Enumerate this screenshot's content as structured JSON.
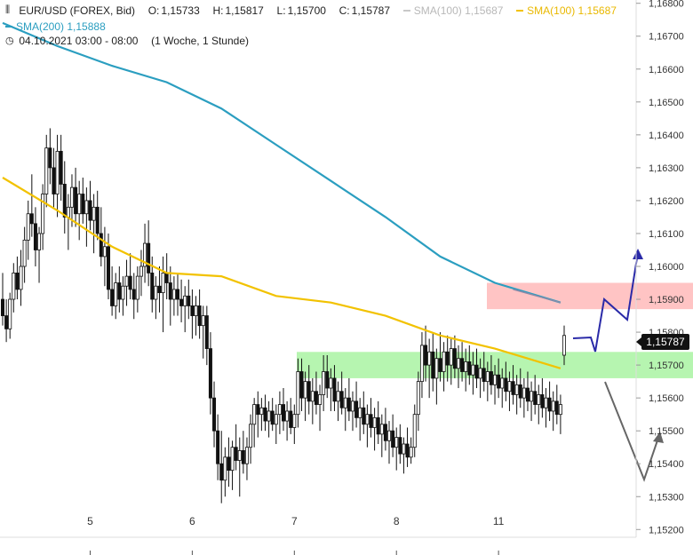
{
  "header": {
    "symbol": "EUR/USD (FOREX, Bid)",
    "open_label": "O:",
    "open": "1,15733",
    "high_label": "H:",
    "high": "1,15817",
    "low_label": "L:",
    "low": "1,15700",
    "close_label": "C:",
    "close": "1,15787",
    "sma100_grey_label": "SMA(100)",
    "sma100_grey_value": "1,15687",
    "sma100_label": "SMA(100)",
    "sma100_value": "1,15687",
    "sma200_label": "SMA(200)",
    "sma200_value": "1,15888",
    "date_range": "04.10.2021 03:00 - 08:00",
    "interval": "(1 Woche, 1 Stunde)"
  },
  "last_price_tag": "1,15787",
  "icons": {
    "chart_type": "candlestick-icon",
    "clock": "clock-icon"
  },
  "colors": {
    "sma100": "#f2c200",
    "sma200": "#2b9ec0",
    "candle": "#111111",
    "resistance_zone": "#ffc4c4",
    "support_zone": "#b6f5b0",
    "bull_arrow": "#2a2aa8",
    "bear_arrow": "#666666"
  },
  "chart_data": {
    "type": "candlestick",
    "title": "EUR/USD (FOREX, Bid)",
    "x_ticks": [
      "5",
      "6",
      "7",
      "8",
      "11"
    ],
    "y_ticks": [
      "1,15200",
      "1,15300",
      "1,15400",
      "1,15500",
      "1,15600",
      "1,15700",
      "1,15800",
      "1,15900",
      "1,16000",
      "1,16100",
      "1,16200",
      "1,16300",
      "1,16400",
      "1,16500",
      "1,16600",
      "1,16700",
      "1,16800"
    ],
    "ylim": [
      1.1519,
      1.1681
    ],
    "n_bars": 155,
    "candles_ohlc": [
      [
        1.159,
        1.1598,
        1.1582,
        1.1585
      ],
      [
        1.1585,
        1.159,
        1.1577,
        1.1581
      ],
      [
        1.1581,
        1.1592,
        1.1578,
        1.159
      ],
      [
        1.159,
        1.1601,
        1.1586,
        1.1598
      ],
      [
        1.1598,
        1.1603,
        1.159,
        1.1593
      ],
      [
        1.1593,
        1.1605,
        1.1588,
        1.16
      ],
      [
        1.16,
        1.1612,
        1.1595,
        1.1608
      ],
      [
        1.1608,
        1.162,
        1.1602,
        1.1616
      ],
      [
        1.1616,
        1.1628,
        1.1609,
        1.1613
      ],
      [
        1.1613,
        1.1618,
        1.16,
        1.1605
      ],
      [
        1.1605,
        1.1612,
        1.1595,
        1.161
      ],
      [
        1.161,
        1.1625,
        1.1605,
        1.1622
      ],
      [
        1.1622,
        1.164,
        1.1618,
        1.1636
      ],
      [
        1.1636,
        1.1642,
        1.1625,
        1.163
      ],
      [
        1.163,
        1.1636,
        1.1618,
        1.1622
      ],
      [
        1.1622,
        1.164,
        1.1615,
        1.1635
      ],
      [
        1.1635,
        1.164,
        1.162,
        1.1625
      ],
      [
        1.1625,
        1.1632,
        1.161,
        1.1615
      ],
      [
        1.1615,
        1.1622,
        1.1605,
        1.1618
      ],
      [
        1.1618,
        1.1628,
        1.1612,
        1.1624
      ],
      [
        1.1624,
        1.163,
        1.1612,
        1.1616
      ],
      [
        1.1616,
        1.1626,
        1.1608,
        1.1622
      ],
      [
        1.1622,
        1.1627,
        1.1613,
        1.1616
      ],
      [
        1.1616,
        1.1624,
        1.1606,
        1.162
      ],
      [
        1.162,
        1.1626,
        1.1611,
        1.1614
      ],
      [
        1.1614,
        1.1622,
        1.1604,
        1.1618
      ],
      [
        1.1618,
        1.1623,
        1.1608,
        1.161
      ],
      [
        1.161,
        1.1618,
        1.16,
        1.1603
      ],
      [
        1.1603,
        1.1612,
        1.1594,
        1.1606
      ],
      [
        1.1606,
        1.161,
        1.159,
        1.1593
      ],
      [
        1.1593,
        1.16,
        1.1585,
        1.1588
      ],
      [
        1.1588,
        1.1598,
        1.1584,
        1.1595
      ],
      [
        1.1595,
        1.16,
        1.1586,
        1.159
      ],
      [
        1.159,
        1.1597,
        1.1585,
        1.1594
      ],
      [
        1.1594,
        1.1602,
        1.1588,
        1.1597
      ],
      [
        1.1597,
        1.1604,
        1.159,
        1.1593
      ],
      [
        1.1593,
        1.1598,
        1.1584,
        1.159
      ],
      [
        1.159,
        1.16,
        1.1586,
        1.1597
      ],
      [
        1.1597,
        1.1605,
        1.1591,
        1.16
      ],
      [
        1.16,
        1.1613,
        1.1595,
        1.1607
      ],
      [
        1.1607,
        1.1614,
        1.1594,
        1.1598
      ],
      [
        1.1598,
        1.1603,
        1.1586,
        1.159
      ],
      [
        1.159,
        1.1597,
        1.1584,
        1.1594
      ],
      [
        1.1594,
        1.16,
        1.1586,
        1.1592
      ],
      [
        1.1592,
        1.1603,
        1.158,
        1.1598
      ],
      [
        1.1598,
        1.1604,
        1.159,
        1.1595
      ],
      [
        1.1595,
        1.16,
        1.1582,
        1.159
      ],
      [
        1.159,
        1.1597,
        1.1585,
        1.1593
      ],
      [
        1.1593,
        1.1598,
        1.1585,
        1.159
      ],
      [
        1.159,
        1.1596,
        1.1583,
        1.1588
      ],
      [
        1.1588,
        1.1594,
        1.158,
        1.1591
      ],
      [
        1.1591,
        1.1596,
        1.1584,
        1.1588
      ],
      [
        1.1588,
        1.1593,
        1.1578,
        1.1585
      ],
      [
        1.1585,
        1.1591,
        1.1579,
        1.1588
      ],
      [
        1.1588,
        1.1593,
        1.1578,
        1.1582
      ],
      [
        1.1582,
        1.1588,
        1.1572,
        1.1585
      ],
      [
        1.1585,
        1.1588,
        1.157,
        1.1575
      ],
      [
        1.1575,
        1.158,
        1.1555,
        1.156
      ],
      [
        1.156,
        1.1565,
        1.1545,
        1.155
      ],
      [
        1.155,
        1.1555,
        1.1535,
        1.154
      ],
      [
        1.154,
        1.155,
        1.1528,
        1.1535
      ],
      [
        1.1535,
        1.1545,
        1.153,
        1.1542
      ],
      [
        1.1542,
        1.1548,
        1.1533,
        1.1538
      ],
      [
        1.1538,
        1.1547,
        1.1532,
        1.1545
      ],
      [
        1.1545,
        1.1552,
        1.1538,
        1.1541
      ],
      [
        1.1541,
        1.1548,
        1.153,
        1.1544
      ],
      [
        1.1544,
        1.155,
        1.1537,
        1.154
      ],
      [
        1.154,
        1.1548,
        1.1535,
        1.1545
      ],
      [
        1.1545,
        1.1555,
        1.154,
        1.1552
      ],
      [
        1.1552,
        1.156,
        1.1545,
        1.1558
      ],
      [
        1.1558,
        1.1562,
        1.1548,
        1.1555
      ],
      [
        1.1555,
        1.156,
        1.155,
        1.1557
      ],
      [
        1.1557,
        1.1561,
        1.155,
        1.1553
      ],
      [
        1.1553,
        1.1559,
        1.1548,
        1.1556
      ],
      [
        1.1556,
        1.156,
        1.155,
        1.1552
      ],
      [
        1.1552,
        1.1558,
        1.1546,
        1.1555
      ],
      [
        1.1555,
        1.1562,
        1.1549,
        1.1558
      ],
      [
        1.1558,
        1.1563,
        1.155,
        1.1553
      ],
      [
        1.1553,
        1.1559,
        1.1547,
        1.1556
      ],
      [
        1.1556,
        1.156,
        1.1549,
        1.1551
      ],
      [
        1.1551,
        1.1558,
        1.1546,
        1.1555
      ],
      [
        1.1555,
        1.1572,
        1.1551,
        1.1568
      ],
      [
        1.1568,
        1.1572,
        1.1556,
        1.156
      ],
      [
        1.156,
        1.1568,
        1.1553,
        1.1565
      ],
      [
        1.1565,
        1.157,
        1.1555,
        1.1559
      ],
      [
        1.1559,
        1.1566,
        1.1552,
        1.1562
      ],
      [
        1.1562,
        1.1568,
        1.1555,
        1.1558
      ],
      [
        1.1558,
        1.1564,
        1.155,
        1.1561
      ],
      [
        1.1561,
        1.1573,
        1.1556,
        1.1568
      ],
      [
        1.1568,
        1.1573,
        1.156,
        1.1563
      ],
      [
        1.1563,
        1.1569,
        1.1556,
        1.1566
      ],
      [
        1.1566,
        1.157,
        1.1556,
        1.1559
      ],
      [
        1.1559,
        1.1565,
        1.1553,
        1.1562
      ],
      [
        1.1562,
        1.1568,
        1.1555,
        1.1557
      ],
      [
        1.1557,
        1.1563,
        1.155,
        1.156
      ],
      [
        1.156,
        1.1566,
        1.1553,
        1.1556
      ],
      [
        1.1556,
        1.1562,
        1.155,
        1.1559
      ],
      [
        1.1559,
        1.1565,
        1.1551,
        1.1554
      ],
      [
        1.1554,
        1.156,
        1.1547,
        1.1557
      ],
      [
        1.1557,
        1.1562,
        1.1549,
        1.1552
      ],
      [
        1.1552,
        1.1558,
        1.1545,
        1.1555
      ],
      [
        1.1555,
        1.156,
        1.1548,
        1.1551
      ],
      [
        1.1551,
        1.1557,
        1.1544,
        1.1554
      ],
      [
        1.1554,
        1.1559,
        1.1546,
        1.1549
      ],
      [
        1.1549,
        1.1555,
        1.1542,
        1.1552
      ],
      [
        1.1552,
        1.1557,
        1.1544,
        1.1547
      ],
      [
        1.1547,
        1.1553,
        1.154,
        1.155
      ],
      [
        1.155,
        1.1555,
        1.1542,
        1.1545
      ],
      [
        1.1545,
        1.1551,
        1.1538,
        1.1548
      ],
      [
        1.1548,
        1.1552,
        1.154,
        1.1543
      ],
      [
        1.1543,
        1.1548,
        1.1537,
        1.1546
      ],
      [
        1.1546,
        1.1551,
        1.1539,
        1.1542
      ],
      [
        1.1542,
        1.1548,
        1.154,
        1.1545
      ],
      [
        1.1545,
        1.1558,
        1.1542,
        1.1555
      ],
      [
        1.1555,
        1.1568,
        1.155,
        1.1565
      ],
      [
        1.1565,
        1.158,
        1.156,
        1.1576
      ],
      [
        1.1576,
        1.1582,
        1.1565,
        1.157
      ],
      [
        1.157,
        1.1578,
        1.156,
        1.1574
      ],
      [
        1.1574,
        1.158,
        1.1562,
        1.1566
      ],
      [
        1.1566,
        1.1575,
        1.1558,
        1.1572
      ],
      [
        1.1572,
        1.158,
        1.1565,
        1.1568
      ],
      [
        1.1568,
        1.1577,
        1.1562,
        1.1574
      ],
      [
        1.1574,
        1.1579,
        1.1565,
        1.157
      ],
      [
        1.157,
        1.1578,
        1.1564,
        1.1575
      ],
      [
        1.1575,
        1.1579,
        1.1566,
        1.1569
      ],
      [
        1.1569,
        1.1576,
        1.1563,
        1.1572
      ],
      [
        1.1572,
        1.1577,
        1.1565,
        1.1568
      ],
      [
        1.1568,
        1.1575,
        1.1562,
        1.1571
      ],
      [
        1.1571,
        1.1576,
        1.1564,
        1.1567
      ],
      [
        1.1567,
        1.1574,
        1.1561,
        1.157
      ],
      [
        1.157,
        1.1575,
        1.1563,
        1.1566
      ],
      [
        1.1566,
        1.1572,
        1.156,
        1.1569
      ],
      [
        1.1569,
        1.1574,
        1.1562,
        1.1565
      ],
      [
        1.1565,
        1.1571,
        1.1559,
        1.1568
      ],
      [
        1.1568,
        1.1573,
        1.1561,
        1.1564
      ],
      [
        1.1564,
        1.157,
        1.1558,
        1.1567
      ],
      [
        1.1567,
        1.1572,
        1.156,
        1.1563
      ],
      [
        1.1563,
        1.1569,
        1.1557,
        1.1566
      ],
      [
        1.1566,
        1.1571,
        1.1559,
        1.1562
      ],
      [
        1.1562,
        1.1568,
        1.1556,
        1.1565
      ],
      [
        1.1565,
        1.157,
        1.1558,
        1.1561
      ],
      [
        1.1561,
        1.1567,
        1.1555,
        1.1564
      ],
      [
        1.1564,
        1.1569,
        1.1557,
        1.156
      ],
      [
        1.156,
        1.1566,
        1.1554,
        1.1563
      ],
      [
        1.1563,
        1.1568,
        1.1556,
        1.1559
      ],
      [
        1.1559,
        1.1565,
        1.1553,
        1.1562
      ],
      [
        1.1562,
        1.1567,
        1.1555,
        1.1558
      ],
      [
        1.1558,
        1.1564,
        1.1552,
        1.1561
      ],
      [
        1.1561,
        1.1566,
        1.1554,
        1.1557
      ],
      [
        1.1557,
        1.1563,
        1.1551,
        1.156
      ],
      [
        1.156,
        1.1565,
        1.1553,
        1.1556
      ],
      [
        1.1556,
        1.1562,
        1.155,
        1.1559
      ],
      [
        1.1559,
        1.1564,
        1.1552,
        1.1555
      ],
      [
        1.1555,
        1.1561,
        1.1549,
        1.1558
      ],
      [
        1.1573,
        1.1582,
        1.157,
        1.1579
      ]
    ],
    "sma200": [
      [
        0,
        1.1674
      ],
      [
        15,
        1.1667
      ],
      [
        30,
        1.1661
      ],
      [
        45,
        1.1656
      ],
      [
        60,
        1.1648
      ],
      [
        75,
        1.1637
      ],
      [
        90,
        1.1626
      ],
      [
        105,
        1.1615
      ],
      [
        120,
        1.1603
      ],
      [
        135,
        1.1595
      ],
      [
        153,
        1.1589
      ]
    ],
    "sma100": [
      [
        0,
        1.1627
      ],
      [
        15,
        1.1617
      ],
      [
        30,
        1.1606
      ],
      [
        45,
        1.1598
      ],
      [
        60,
        1.1597
      ],
      [
        75,
        1.1591
      ],
      [
        90,
        1.1589
      ],
      [
        105,
        1.1585
      ],
      [
        120,
        1.1579
      ],
      [
        135,
        1.1575
      ],
      [
        153,
        1.1569
      ]
    ],
    "zones": [
      {
        "name": "resistance",
        "from": 1.1587,
        "to": 1.1595
      },
      {
        "name": "support",
        "from": 1.1566,
        "to": 1.1574
      }
    ]
  }
}
